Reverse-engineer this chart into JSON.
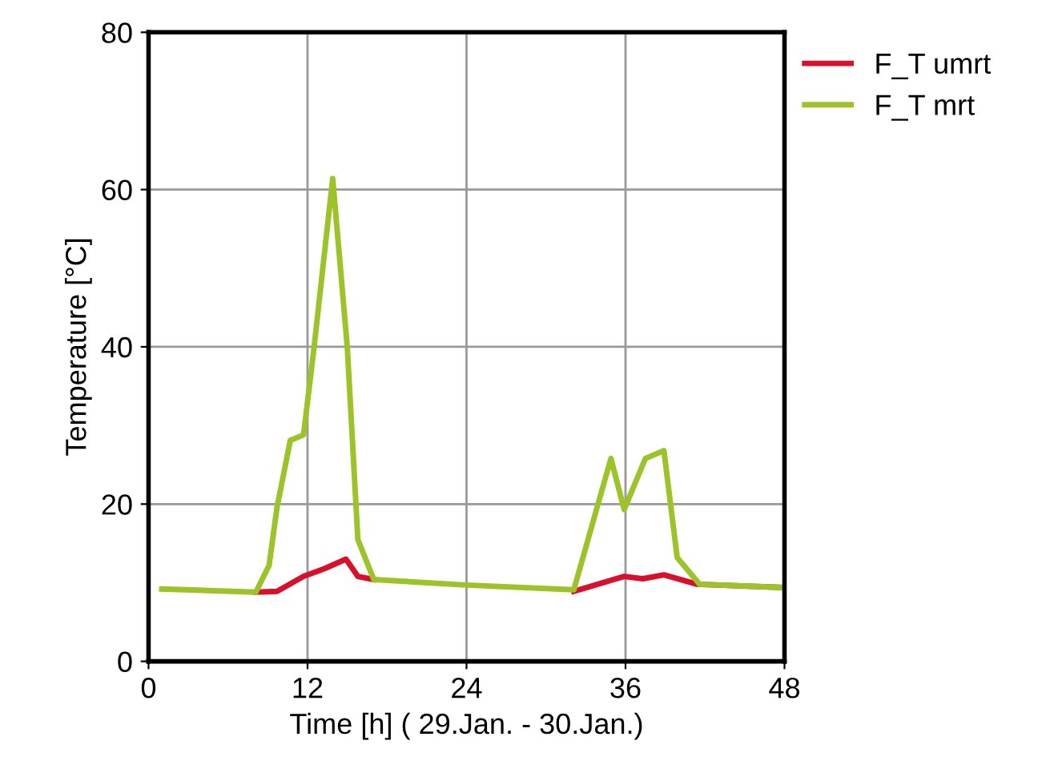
{
  "chart_data": {
    "type": "line",
    "xlabel": "Time [h] ( 29.Jan. - 30.Jan.)",
    "ylabel": "Temperature [°C]",
    "xlim": [
      0,
      48
    ],
    "xticks": [
      0,
      12,
      24,
      36,
      48
    ],
    "ylim": [
      0,
      80
    ],
    "yticks": [
      0,
      20,
      40,
      60,
      80
    ],
    "grid": true,
    "legend": "top right",
    "series": [
      {
        "name": "F_T umrt",
        "color": "#d8102e",
        "x": [
          8.1,
          9.7,
          11.7,
          13.3,
          14.9,
          15.8,
          17,
          24,
          32.1,
          33.9,
          35.9,
          37.3,
          38.9,
          41.4,
          47.8
        ],
        "values": [
          8.8,
          8.9,
          10.8,
          11.8,
          13,
          10.8,
          10.4,
          null,
          8.9,
          9.8,
          10.8,
          10.5,
          11,
          9.8,
          9.4
        ]
      },
      {
        "name": "F_T mrt",
        "color": "#9dc32a",
        "x": [
          1,
          8.1,
          9.1,
          9.7,
          10.7,
          11.7,
          12.5,
          13.9,
          15,
          15.8,
          17,
          24,
          32.1,
          34.9,
          35.9,
          37.5,
          38.9,
          39.9,
          41.6,
          47.8
        ],
        "values": [
          9.2,
          8.8,
          12.2,
          19.6,
          28.1,
          28.8,
          40,
          61.4,
          40,
          15.5,
          10.4,
          9.7,
          9.1,
          25.8,
          19.3,
          25.8,
          26.8,
          13.2,
          9.8,
          9.4
        ]
      }
    ]
  }
}
